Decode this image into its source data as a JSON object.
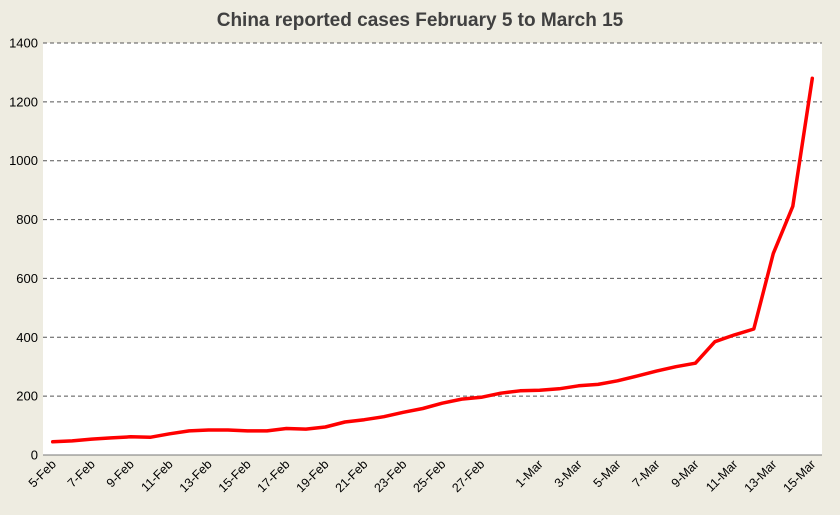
{
  "chart_data": {
    "type": "line",
    "title": "China reported cases February 5 to March 15",
    "xlabel": "",
    "ylabel": "",
    "ylim": [
      0,
      1400
    ],
    "yticks": [
      0,
      200,
      400,
      600,
      800,
      1000,
      1200,
      1400
    ],
    "grid": "horizontal-dashed",
    "legend": "none",
    "line_color": "#ff0000",
    "x": [
      "5-Feb",
      "6-Feb",
      "7-Feb",
      "8-Feb",
      "9-Feb",
      "10-Feb",
      "11-Feb",
      "12-Feb",
      "13-Feb",
      "14-Feb",
      "15-Feb",
      "16-Feb",
      "17-Feb",
      "18-Feb",
      "19-Feb",
      "20-Feb",
      "21-Feb",
      "22-Feb",
      "23-Feb",
      "24-Feb",
      "25-Feb",
      "26-Feb",
      "27-Feb",
      "28-Feb",
      "29-Feb",
      "1-Mar",
      "2-Mar",
      "3-Mar",
      "4-Mar",
      "5-Mar",
      "6-Mar",
      "7-Mar",
      "8-Mar",
      "9-Mar",
      "10-Mar",
      "11-Mar",
      "12-Mar",
      "13-Mar",
      "14-Mar",
      "15-Mar"
    ],
    "xtick_labels": [
      "5-Feb",
      "7-Feb",
      "9-Feb",
      "11-Feb",
      "13-Feb",
      "15-Feb",
      "17-Feb",
      "19-Feb",
      "21-Feb",
      "23-Feb",
      "25-Feb",
      "27-Feb",
      "1-Mar",
      "3-Mar",
      "5-Mar",
      "7-Mar",
      "9-Mar",
      "11-Mar",
      "13-Mar",
      "15-Mar"
    ],
    "series": [
      {
        "values": [
          45,
          48,
          54,
          58,
          62,
          60,
          72,
          82,
          85,
          85,
          82,
          82,
          90,
          88,
          95,
          112,
          120,
          130,
          145,
          158,
          176,
          190,
          196,
          210,
          218,
          220,
          225,
          235,
          240,
          252,
          268,
          285,
          300,
          312,
          385,
          408,
          428,
          685,
          845,
          1280
        ]
      }
    ]
  }
}
